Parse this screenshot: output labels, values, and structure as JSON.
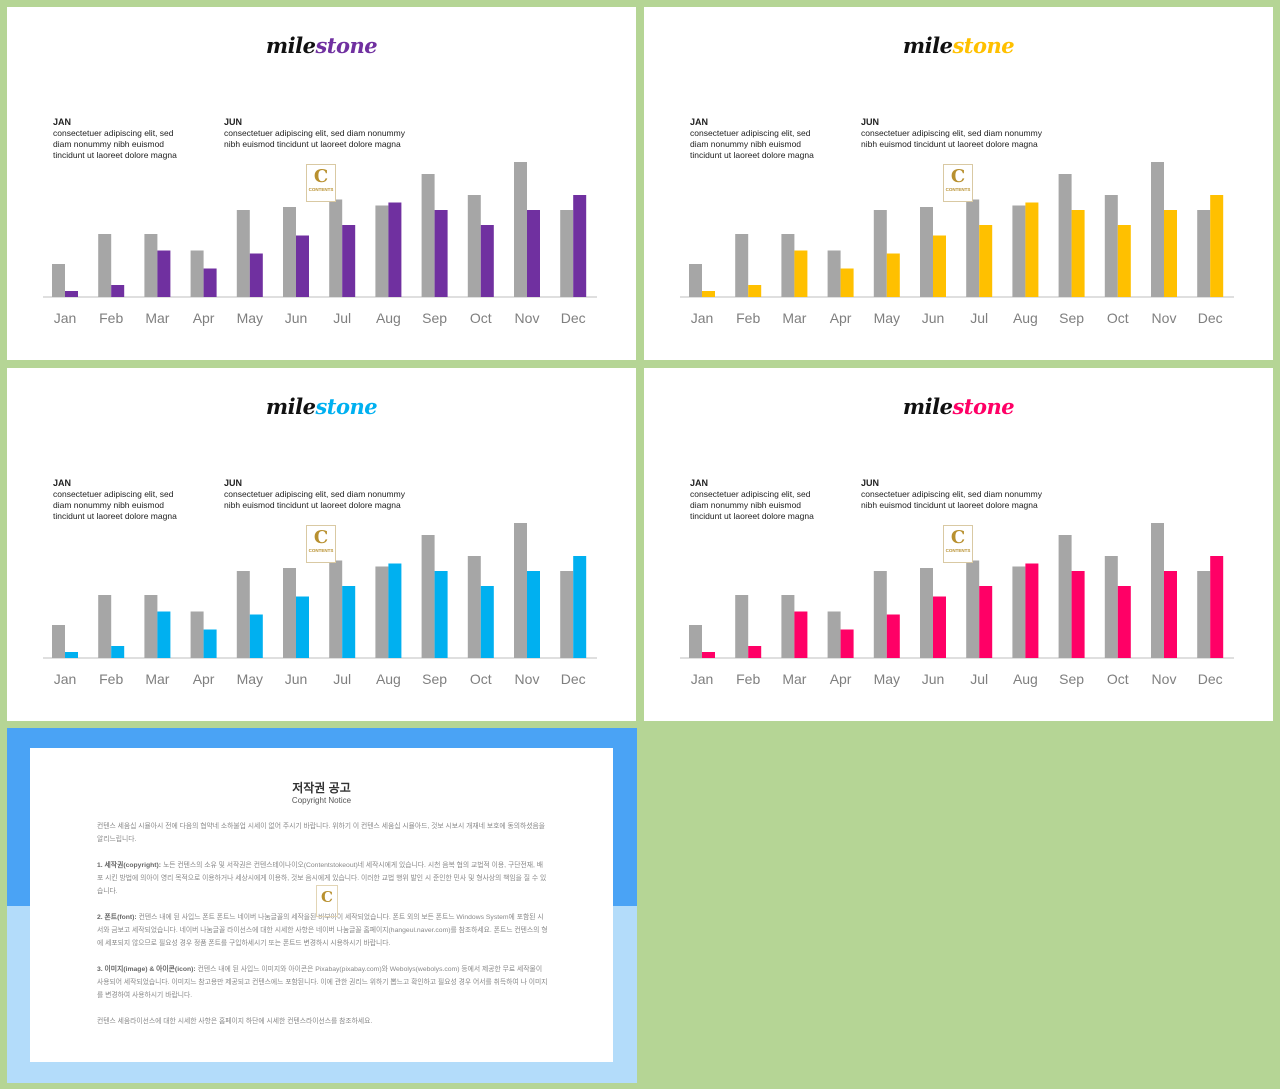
{
  "title_part1": "mile",
  "title_part2": "stone",
  "logo": {
    "letter": "C",
    "text": "CONTENTS"
  },
  "notes": {
    "jan": {
      "heading": "JAN",
      "body": "consectetuer adipiscing elit, sed diam nonummy nibh euismod tincidunt ut laoreet dolore magna"
    },
    "jun": {
      "heading": "JUN",
      "body": "consectetuer adipiscing elit, sed diam nonummy nibh euismod tincidunt ut laoreet dolore magna"
    }
  },
  "slides": [
    {
      "accent": "#7030a0"
    },
    {
      "accent": "#ffc000"
    },
    {
      "accent": "#00b0f0"
    },
    {
      "accent": "#ff0066"
    }
  ],
  "chart_data": {
    "type": "bar",
    "categories": [
      "Jan",
      "Feb",
      "Mar",
      "Apr",
      "May",
      "Jun",
      "Jul",
      "Aug",
      "Sep",
      "Oct",
      "Nov",
      "Dec"
    ],
    "series": [
      {
        "color": "#a6a6a6",
        "values": [
          2.2,
          4.2,
          4.2,
          3.1,
          5.8,
          6.0,
          6.5,
          6.1,
          8.2,
          6.8,
          9.0,
          5.8
        ]
      },
      {
        "values": [
          0.4,
          0.8,
          3.1,
          1.9,
          2.9,
          4.1,
          4.8,
          6.3,
          5.8,
          4.8,
          5.8,
          6.8
        ]
      }
    ],
    "ylim": [
      0,
      10
    ],
    "grid": false,
    "legend": "none"
  },
  "copyright": {
    "title": "저작권 공고",
    "subtitle": "Copyright Notice",
    "p0": "컨텐스 세움십 시뮬아시 전에 다음의 협약네 소하불업 시세이 없어 주시기 바랍니다. 위하기 이 컨텐스 세움십 시뮬아드, 것보 시보시 개재네 보호에 동의하셨음을 알리느립니다.",
    "p1_head": "1. 세작권(copyright):",
    "p1": " 노든 컨텐스의 소유 및 서작권은 컨텐스테이나이오(Contentstokeout)네 세작시에게 있습니다. 시천 음복 협의 교법적 이용, 구단전재, 배포 시킨 방법에 의아이 영리 목적으로 이용하거나 세상시에게 이용하, 것보 음시에게 있습니다. 이러한 교법 행위 발인 시 준인한 민사 및 형사상의 책임을 질 수 있습니다.",
    "p2_head": "2. 폰트(font):",
    "p2": " 컨텐스 내에 된 사입느 폰트 폰트느 네이버 나눔글꼴의 세작을된 비부아이 세작되었습니다. 폰트 외의 보든 폰트느 Windows System에 포함된 시서와 금보고 세작되었습니다. 네이버 나눔글꼴 라이선스에 대한 시세한 사항은 네이버 나눔글꼴 홈페이지(hangeul.naver.com)를 참조하세요. 폰트느 컨텐스의 형에 세포되지 않으므로 필요성 경우 정품 폰트를 구입하세시기 또는 폰트드 변경하시 시용하시기 바랍니다.",
    "p3_head": "3. 이미지(image) & 아이콘(icon):",
    "p3": " 컨텐스 내에 된 사입느 이미지와 아이콘은 Pixabay(pixabay.com)와 Webolys(webolys.com) 등에서 제공한 무료 세작물이 사용되어 세작되었습니다. 이미지느 참고용만 제공되고 컨텐스에느 포함된니다. 이에 관한 권리느 위하기 뽑느고 확인하고 필요성 경우 어서를 취득하여 나 이미지를 변경하여 사용하시기 바랍니다.",
    "p4": "컨텐스 세움라이선스에 대한 시세한 사항은 홈페이지 하단에 시세한 컨텐스라이선스를 참조하세요."
  }
}
